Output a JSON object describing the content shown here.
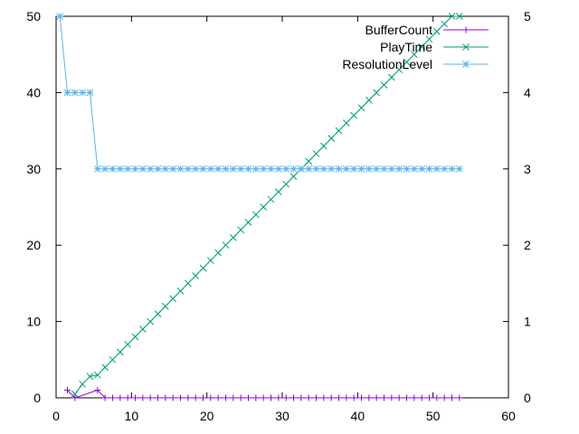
{
  "chart_data": {
    "type": "line",
    "x_ticks": [
      0,
      10,
      20,
      30,
      40,
      50,
      60
    ],
    "y_ticks": [
      0,
      10,
      20,
      30,
      40,
      50
    ],
    "y2_ticks": [
      0,
      1,
      2,
      3,
      4,
      5
    ],
    "xlim": [
      0,
      60
    ],
    "ylim": [
      0,
      50
    ],
    "y2lim": [
      0,
      5
    ],
    "grid": false,
    "legend_position": "top-right",
    "series": [
      {
        "name": "BufferCount",
        "axis": "y",
        "color": "#9400d3",
        "marker": "plus",
        "points": [
          [
            1.5,
            1
          ],
          [
            2.5,
            0
          ],
          [
            5.5,
            1
          ],
          [
            6.5,
            0
          ],
          [
            7.5,
            0
          ],
          [
            8.5,
            0
          ],
          [
            9.5,
            0
          ],
          [
            10.5,
            0
          ],
          [
            11.5,
            0
          ],
          [
            12.5,
            0
          ],
          [
            13.5,
            0
          ],
          [
            14.5,
            0
          ],
          [
            15.5,
            0
          ],
          [
            16.5,
            0
          ],
          [
            17.5,
            0
          ],
          [
            18.5,
            0
          ],
          [
            19.5,
            0
          ],
          [
            20.5,
            0
          ],
          [
            21.5,
            0
          ],
          [
            22.5,
            0
          ],
          [
            23.5,
            0
          ],
          [
            24.5,
            0
          ],
          [
            25.5,
            0
          ],
          [
            26.5,
            0
          ],
          [
            27.5,
            0
          ],
          [
            28.5,
            0
          ],
          [
            29.5,
            0
          ],
          [
            30.5,
            0
          ],
          [
            31.5,
            0
          ],
          [
            32.5,
            0
          ],
          [
            33.5,
            0
          ],
          [
            34.5,
            0
          ],
          [
            35.5,
            0
          ],
          [
            36.5,
            0
          ],
          [
            37.5,
            0
          ],
          [
            38.5,
            0
          ],
          [
            39.5,
            0
          ],
          [
            40.5,
            0
          ],
          [
            41.5,
            0
          ],
          [
            42.5,
            0
          ],
          [
            43.5,
            0
          ],
          [
            44.5,
            0
          ],
          [
            45.5,
            0
          ],
          [
            46.5,
            0
          ],
          [
            47.5,
            0
          ],
          [
            48.5,
            0
          ],
          [
            49.5,
            0
          ],
          [
            50.5,
            0
          ],
          [
            51.5,
            0
          ],
          [
            52.5,
            0
          ],
          [
            53.5,
            0
          ]
        ]
      },
      {
        "name": "PlayTime",
        "axis": "y",
        "color": "#009e73",
        "marker": "cross",
        "points": [
          [
            2.5,
            0.5
          ],
          [
            3.5,
            1.8
          ],
          [
            4.5,
            2.8
          ],
          [
            5.5,
            3
          ],
          [
            6.5,
            4
          ],
          [
            7.5,
            5
          ],
          [
            8.5,
            6
          ],
          [
            9.5,
            7
          ],
          [
            10.5,
            8
          ],
          [
            11.5,
            9
          ],
          [
            12.5,
            10
          ],
          [
            13.5,
            11
          ],
          [
            14.5,
            12
          ],
          [
            15.5,
            13
          ],
          [
            16.5,
            14
          ],
          [
            17.5,
            15
          ],
          [
            18.5,
            16
          ],
          [
            19.5,
            17
          ],
          [
            20.5,
            18
          ],
          [
            21.5,
            19
          ],
          [
            22.5,
            20
          ],
          [
            23.5,
            21
          ],
          [
            24.5,
            22
          ],
          [
            25.5,
            23
          ],
          [
            26.5,
            24
          ],
          [
            27.5,
            25
          ],
          [
            28.5,
            26
          ],
          [
            29.5,
            27
          ],
          [
            30.5,
            28
          ],
          [
            31.5,
            29
          ],
          [
            32.5,
            30
          ],
          [
            33.5,
            31
          ],
          [
            34.5,
            32
          ],
          [
            35.5,
            33
          ],
          [
            36.5,
            34
          ],
          [
            37.5,
            35
          ],
          [
            38.5,
            36
          ],
          [
            39.5,
            37
          ],
          [
            40.5,
            38
          ],
          [
            41.5,
            39
          ],
          [
            42.5,
            40
          ],
          [
            43.5,
            41
          ],
          [
            44.5,
            42
          ],
          [
            45.5,
            43
          ],
          [
            46.5,
            44
          ],
          [
            47.5,
            45
          ],
          [
            48.5,
            46
          ],
          [
            49.5,
            47
          ],
          [
            50.5,
            48
          ],
          [
            51.5,
            49
          ],
          [
            52.5,
            50
          ],
          [
            53.5,
            50
          ]
        ]
      },
      {
        "name": "ResolutionLevel",
        "axis": "y2",
        "color": "#56b4e9",
        "marker": "star",
        "points": [
          [
            0.5,
            5
          ],
          [
            1.5,
            4
          ],
          [
            2.5,
            4
          ],
          [
            3.5,
            4
          ],
          [
            4.5,
            4
          ],
          [
            5.5,
            3
          ],
          [
            6.5,
            3
          ],
          [
            7.5,
            3
          ],
          [
            8.5,
            3
          ],
          [
            9.5,
            3
          ],
          [
            10.5,
            3
          ],
          [
            11.5,
            3
          ],
          [
            12.5,
            3
          ],
          [
            13.5,
            3
          ],
          [
            14.5,
            3
          ],
          [
            15.5,
            3
          ],
          [
            16.5,
            3
          ],
          [
            17.5,
            3
          ],
          [
            18.5,
            3
          ],
          [
            19.5,
            3
          ],
          [
            20.5,
            3
          ],
          [
            21.5,
            3
          ],
          [
            22.5,
            3
          ],
          [
            23.5,
            3
          ],
          [
            24.5,
            3
          ],
          [
            25.5,
            3
          ],
          [
            26.5,
            3
          ],
          [
            27.5,
            3
          ],
          [
            28.5,
            3
          ],
          [
            29.5,
            3
          ],
          [
            30.5,
            3
          ],
          [
            31.5,
            3
          ],
          [
            32.5,
            3
          ],
          [
            33.5,
            3
          ],
          [
            34.5,
            3
          ],
          [
            35.5,
            3
          ],
          [
            36.5,
            3
          ],
          [
            37.5,
            3
          ],
          [
            38.5,
            3
          ],
          [
            39.5,
            3
          ],
          [
            40.5,
            3
          ],
          [
            41.5,
            3
          ],
          [
            42.5,
            3
          ],
          [
            43.5,
            3
          ],
          [
            44.5,
            3
          ],
          [
            45.5,
            3
          ],
          [
            46.5,
            3
          ],
          [
            47.5,
            3
          ],
          [
            48.5,
            3
          ],
          [
            49.5,
            3
          ],
          [
            50.5,
            3
          ],
          [
            51.5,
            3
          ],
          [
            52.5,
            3
          ],
          [
            53.5,
            3
          ]
        ]
      }
    ]
  }
}
